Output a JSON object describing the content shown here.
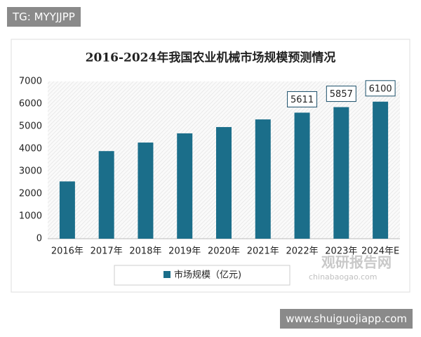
{
  "watermarks": {
    "top_left": "TG: MYYJJPP",
    "bottom_right": "www.shuiguojiapp.com",
    "logo_cn": "观研报告网",
    "logo_en": "chinabaogao.com"
  },
  "chart_data": {
    "type": "bar",
    "title": "2016-2024年我国农业机械市场规模预测情况",
    "categories": [
      "2016年",
      "2017年",
      "2018年",
      "2019年",
      "2020年",
      "2021年",
      "2022年",
      "2023年",
      "2024年E"
    ],
    "series": [
      {
        "name": "市场规模（亿元)",
        "color": "#1b6e8a",
        "values": [
          2550,
          3900,
          4280,
          4690,
          4970,
          5310,
          5611,
          5857,
          6100
        ],
        "labeled": [
          false,
          false,
          false,
          false,
          false,
          false,
          true,
          true,
          true
        ]
      }
    ],
    "ylim": [
      0,
      7000
    ],
    "yticks": [
      0,
      1000,
      2000,
      3000,
      4000,
      5000,
      6000,
      7000
    ],
    "grid": false,
    "legend": "bottom"
  }
}
